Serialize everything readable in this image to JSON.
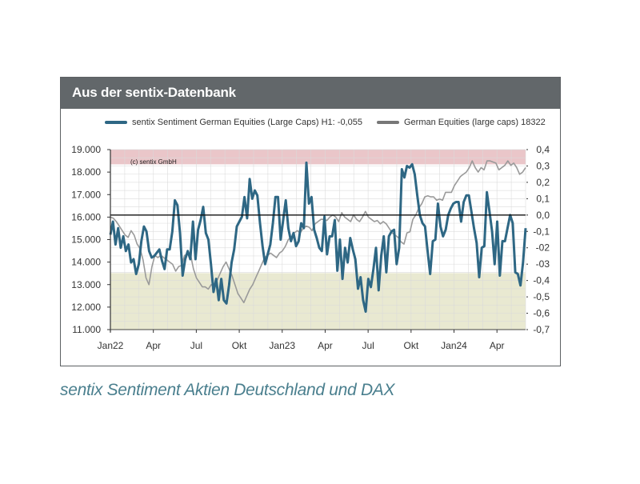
{
  "header": {
    "title": "Aus der sentix-Datenbank"
  },
  "caption": "sentix Sentiment Aktien Deutschland und DAX",
  "colors": {
    "header_bg": "#62676a",
    "sentiment_line": "#2e6784",
    "dax_line": "#9a9a9a",
    "upper_band": "#e9c3c6",
    "lower_band": "#e8e8cf",
    "caption": "#4a7f8e"
  },
  "chart_data": {
    "type": "line",
    "title": "",
    "credit": "(c) sentix GmbH",
    "legend_position": "top",
    "series": [
      {
        "name": "sentix Sentiment German Equities (Large Caps) H1: -0,055",
        "axis": "right",
        "color": "#2e6784",
        "values": [
          -0.12,
          -0.04,
          -0.18,
          -0.08,
          -0.2,
          -0.13,
          -0.22,
          -0.18,
          -0.29,
          -0.27,
          -0.36,
          -0.3,
          -0.16,
          -0.07,
          -0.1,
          -0.22,
          -0.26,
          -0.25,
          -0.23,
          -0.21,
          -0.28,
          -0.33,
          -0.21,
          -0.21,
          -0.1,
          0.09,
          0.06,
          -0.11,
          -0.37,
          -0.27,
          -0.22,
          -0.27,
          -0.04,
          -0.27,
          -0.09,
          -0.03,
          0.05,
          -0.11,
          -0.15,
          -0.3,
          -0.47,
          -0.39,
          -0.52,
          -0.39,
          -0.52,
          -0.54,
          -0.43,
          -0.29,
          -0.21,
          -0.07,
          -0.04,
          -0.01,
          0.11,
          -0.02,
          0.22,
          0.1,
          0.15,
          0.12,
          -0.05,
          -0.19,
          -0.3,
          -0.24,
          -0.18,
          -0.05,
          0.11,
          0.11,
          -0.15,
          -0.03,
          0.09,
          -0.08,
          -0.16,
          -0.11,
          -0.19,
          -0.16,
          -0.05,
          -0.08,
          0.32,
          0.07,
          0.11,
          -0.09,
          -0.14,
          -0.2,
          -0.22,
          -0.01,
          -0.24,
          -0.13,
          -0.13,
          -0.03,
          -0.34,
          -0.15,
          -0.39,
          -0.2,
          -0.29,
          -0.14,
          -0.21,
          -0.27,
          -0.45,
          -0.38,
          -0.52,
          -0.59,
          -0.39,
          -0.44,
          -0.33,
          -0.2,
          -0.46,
          -0.25,
          -0.13,
          -0.35,
          -0.13,
          -0.1,
          -0.09,
          -0.3,
          -0.2,
          0.28,
          0.23,
          0.3,
          0.29,
          0.31,
          0.25,
          0.12,
          0.0,
          -0.05,
          -0.07,
          -0.22,
          -0.36,
          -0.16,
          -0.15,
          0.07,
          -0.07,
          -0.13,
          -0.09,
          0.0,
          0.04,
          0.07,
          0.08,
          0.08,
          -0.04,
          0.08,
          0.12,
          0.12,
          0.02,
          -0.08,
          -0.17,
          -0.38,
          -0.2,
          -0.19,
          0.14,
          0.02,
          -0.1,
          -0.3,
          -0.04,
          -0.37,
          -0.16,
          -0.16,
          -0.08,
          0.0,
          -0.05,
          -0.35,
          -0.36,
          -0.43,
          -0.29,
          -0.08
        ],
        "x_start": "2022-01",
        "x_end": "2024-05"
      },
      {
        "name": "German Equities (large caps) 18322",
        "axis": "left",
        "color": "#9a9a9a",
        "values": [
          16000,
          15950,
          15800,
          15600,
          15400,
          15200,
          15100,
          15400,
          15200,
          14800,
          14600,
          14100,
          13300,
          13000,
          13800,
          14300,
          14200,
          14300,
          14200,
          14100,
          14000,
          13900,
          13600,
          13800,
          13850,
          14300,
          14350,
          14350,
          13700,
          13300,
          13100,
          12900,
          12900,
          12800,
          13000,
          12900,
          13200,
          13500,
          13800,
          14000,
          13700,
          13400,
          13000,
          12600,
          12400,
          12200,
          12500,
          12800,
          13000,
          13300,
          13600,
          13900,
          14200,
          14300,
          14400,
          14300,
          14200,
          14400,
          14500,
          14700,
          15000,
          15100,
          15300,
          15400,
          15300,
          15500,
          15600,
          15550,
          15400,
          15700,
          15800,
          15900,
          15900,
          15850,
          16000,
          16100,
          16000,
          15800,
          16200,
          16000,
          15900,
          15800,
          16100,
          15900,
          15800,
          16000,
          16250,
          16000,
          15900,
          15800,
          15850,
          15700,
          15800,
          15700,
          15500,
          15300,
          15200,
          15100,
          14900,
          14800,
          15300,
          15350,
          15900,
          16100,
          16400,
          16600,
          16900,
          16950,
          16900,
          16900,
          16750,
          16800,
          16750,
          17100,
          17100,
          17100,
          17400,
          17600,
          17800,
          17900,
          18000,
          18200,
          18500,
          18200,
          18000,
          18200,
          18100,
          18500,
          18500,
          18450,
          18400,
          18100,
          18200,
          18300,
          18500,
          18300,
          18400,
          18200,
          17900,
          18000,
          18200
        ]
      }
    ],
    "x_tick_labels": [
      "Jan22",
      "Apr",
      "Jul",
      "Okt",
      "Jan23",
      "Apr",
      "Jul",
      "Okt",
      "Jan24",
      "Apr"
    ],
    "left_axis": {
      "tick_labels": [
        "19.000",
        "18.000",
        "17.000",
        "16.000",
        "15.000",
        "14.000",
        "13.000",
        "12.000",
        "11.000"
      ],
      "ticks": [
        19000,
        18000,
        17000,
        16000,
        15000,
        14000,
        13000,
        12000,
        11000
      ],
      "range": [
        11000,
        19000
      ]
    },
    "right_axis": {
      "tick_labels": [
        "0,4",
        "0,3",
        "0,2",
        "0,1",
        "0,0",
        "-0,1",
        "-02",
        "-03",
        "-0,4",
        "-0,5",
        "-0,6",
        "-0,7"
      ],
      "ticks": [
        0.4,
        0.3,
        0.2,
        0.1,
        0.0,
        -0.1,
        -0.2,
        -0.3,
        -0.4,
        -0.5,
        -0.6,
        -0.7
      ],
      "range": [
        -0.7,
        0.4
      ]
    },
    "bands": [
      {
        "name": "overbought-zone",
        "axis": "right",
        "from": 0.31,
        "to": 0.4,
        "color": "#e9c3c6"
      },
      {
        "name": "oversold-zone",
        "axis": "right",
        "from": -0.7,
        "to": -0.355,
        "color": "#e8e8cf"
      }
    ],
    "zero_line": 0.0,
    "grid": true
  }
}
